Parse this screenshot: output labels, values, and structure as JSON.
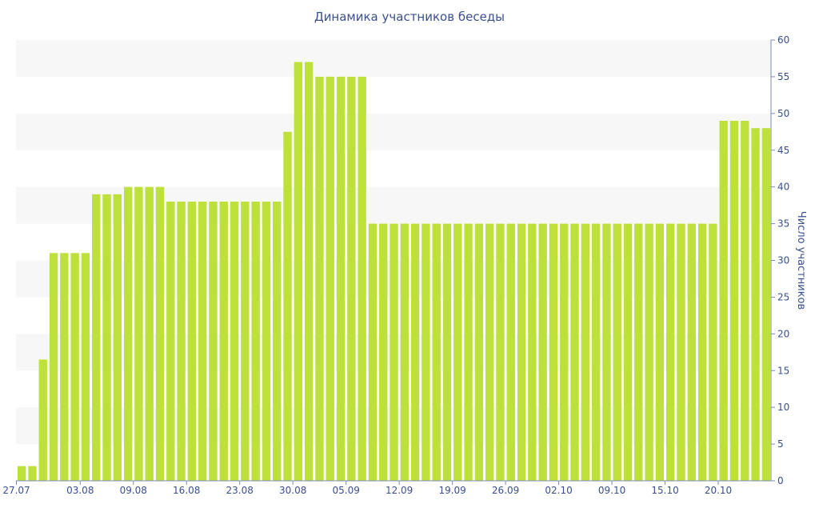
{
  "chart_data": {
    "type": "bar",
    "title": "Динамика участников беседы",
    "ylabel": "Число участников",
    "xlabel": "",
    "ylim": [
      0,
      60
    ],
    "y_ticks": [
      0,
      5,
      10,
      15,
      20,
      25,
      30,
      35,
      40,
      45,
      50,
      55,
      60
    ],
    "y_axis_position": "right",
    "grid": "alternating horizontal bands",
    "x_tick_labels": [
      {
        "index": 0,
        "label": "27.07"
      },
      {
        "index": 6,
        "label": "03.08"
      },
      {
        "index": 11,
        "label": "09.08"
      },
      {
        "index": 16,
        "label": "16.08"
      },
      {
        "index": 21,
        "label": "23.08"
      },
      {
        "index": 26,
        "label": "30.08"
      },
      {
        "index": 31,
        "label": "05.09"
      },
      {
        "index": 36,
        "label": "12.09"
      },
      {
        "index": 41,
        "label": "19.09"
      },
      {
        "index": 46,
        "label": "26.09"
      },
      {
        "index": 51,
        "label": "02.10"
      },
      {
        "index": 56,
        "label": "09.10"
      },
      {
        "index": 61,
        "label": "15.10"
      },
      {
        "index": 66,
        "label": "20.10"
      }
    ],
    "values": [
      2,
      2,
      16.5,
      31,
      31,
      31,
      31,
      39,
      39,
      39,
      40,
      40,
      40,
      40,
      38,
      38,
      38,
      38,
      38,
      38,
      38,
      38,
      38,
      38,
      38,
      47.5,
      57,
      57,
      55,
      55,
      55,
      55,
      55,
      35,
      35,
      35,
      35,
      35,
      35,
      35,
      35,
      35,
      35,
      35,
      35,
      35,
      35,
      35,
      35,
      35,
      35,
      35,
      35,
      35,
      35,
      35,
      35,
      35,
      35,
      35,
      35,
      35,
      35,
      35,
      35,
      35,
      49,
      49,
      49,
      48,
      48
    ],
    "bar_color": "#bde03a",
    "band_color": "#f7f7f7",
    "text_color": "#3b4f8f"
  }
}
